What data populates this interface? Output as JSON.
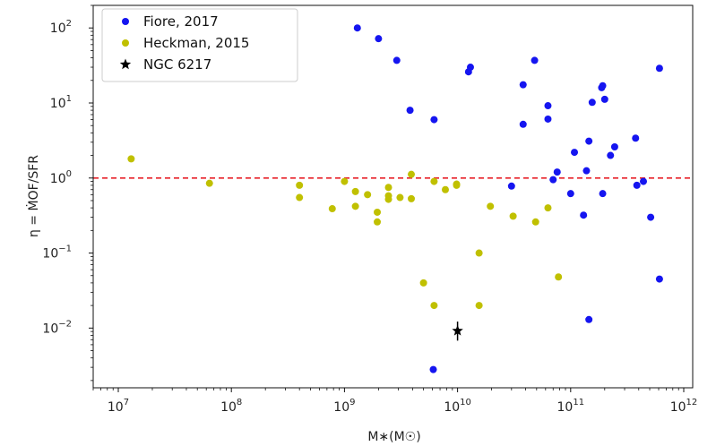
{
  "chart_data": {
    "type": "scatter",
    "xlabel": "M∗(M☉)",
    "ylabel": "η = ṀOF/SFR",
    "xscale": "log",
    "yscale": "log",
    "xlim": [
      6000000,
      1200000000000
    ],
    "ylim": [
      0.0016,
      200
    ],
    "x_ticks": [
      {
        "value": 10000000,
        "base": "10",
        "exp": "7"
      },
      {
        "value": 100000000,
        "base": "10",
        "exp": "8"
      },
      {
        "value": 1000000000,
        "base": "10",
        "exp": "9"
      },
      {
        "value": 10000000000,
        "base": "10",
        "exp": "10"
      },
      {
        "value": 100000000000,
        "base": "10",
        "exp": "11"
      },
      {
        "value": 1000000000000,
        "base": "10",
        "exp": "12"
      }
    ],
    "y_ticks": [
      {
        "value": 0.01,
        "base": "10",
        "exp": "−2"
      },
      {
        "value": 0.1,
        "base": "10",
        "exp": "−1"
      },
      {
        "value": 1,
        "base": "10",
        "exp": "0"
      },
      {
        "value": 10,
        "base": "10",
        "exp": "1"
      },
      {
        "value": 100,
        "base": "10",
        "exp": "2"
      }
    ],
    "grid": false,
    "legend_position": "top-left",
    "reference_line": {
      "y": 1,
      "color": "#e8222a",
      "style": "dashed"
    },
    "series": [
      {
        "name": "Fiore, 2017",
        "color": "#1515f0",
        "marker": "circle",
        "points": [
          [
            1300000000,
            100
          ],
          [
            2000000000,
            72
          ],
          [
            2900000000,
            37
          ],
          [
            3800000000,
            8
          ],
          [
            6200000000,
            6
          ],
          [
            6100000000,
            0.0028
          ],
          [
            12500000000,
            26
          ],
          [
            13000000000,
            30
          ],
          [
            30000000000,
            0.78
          ],
          [
            38000000000,
            17.5
          ],
          [
            38000000000,
            5.2
          ],
          [
            48000000000,
            37
          ],
          [
            63000000000,
            9.2
          ],
          [
            63000000000,
            6.1
          ],
          [
            70000000000,
            0.95
          ],
          [
            76000000000,
            1.2
          ],
          [
            100000000000,
            0.62
          ],
          [
            108000000000,
            2.2
          ],
          [
            130000000000,
            0.32
          ],
          [
            138000000000,
            1.25
          ],
          [
            145000000000,
            3.1
          ],
          [
            145000000000,
            0.013
          ],
          [
            155000000000,
            10.2
          ],
          [
            188000000000,
            16
          ],
          [
            192000000000,
            17
          ],
          [
            192000000000,
            0.62
          ],
          [
            200000000000,
            11.2
          ],
          [
            225000000000,
            2
          ],
          [
            245000000000,
            2.6
          ],
          [
            375000000000,
            3.4
          ],
          [
            385000000000,
            0.8
          ],
          [
            440000000000,
            0.9
          ],
          [
            510000000000,
            0.3
          ],
          [
            610000000000,
            29
          ],
          [
            610000000000,
            0.045
          ]
        ]
      },
      {
        "name": "Heckman, 2015",
        "color": "#c0c000",
        "marker": "circle",
        "points": [
          [
            13000000,
            1.8
          ],
          [
            64000000,
            0.85
          ],
          [
            400000000,
            0.8
          ],
          [
            400000000,
            0.55
          ],
          [
            780000000,
            0.39
          ],
          [
            1000000000,
            0.9
          ],
          [
            1250000000,
            0.66
          ],
          [
            1250000000,
            0.42
          ],
          [
            1600000000,
            0.6
          ],
          [
            1950000000,
            0.35
          ],
          [
            1950000000,
            0.26
          ],
          [
            2450000000,
            0.75
          ],
          [
            2450000000,
            0.58
          ],
          [
            2450000000,
            0.52
          ],
          [
            3100000000,
            0.55
          ],
          [
            3900000000,
            1.12
          ],
          [
            3900000000,
            0.53
          ],
          [
            5000000000,
            0.04
          ],
          [
            6200000000,
            0.9
          ],
          [
            6200000000,
            0.02
          ],
          [
            7800000000,
            0.7
          ],
          [
            9800000000,
            0.8
          ],
          [
            9800000000,
            0.83
          ],
          [
            15500000000,
            0.1
          ],
          [
            15500000000,
            0.02
          ],
          [
            19500000000,
            0.42
          ],
          [
            31000000000,
            0.31
          ],
          [
            49000000000,
            0.26
          ],
          [
            63000000000,
            0.4
          ],
          [
            78000000000,
            0.048
          ]
        ]
      },
      {
        "name": "NGC 6217",
        "color": "#000000",
        "marker": "star",
        "points": [
          [
            10000000000,
            0.0092
          ]
        ],
        "y_error": [
          [
            0.0068,
            0.0122
          ]
        ]
      }
    ]
  }
}
